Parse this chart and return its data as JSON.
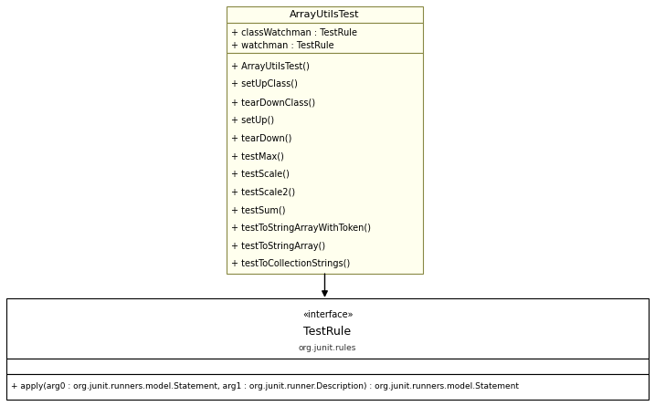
{
  "bg_color": "#ffffff",
  "class_bg": "#ffffee",
  "class_border": "#888844",
  "interface_bg": "#ffffff",
  "interface_border": "#000000",
  "class_name": "ArrayUtilsTest",
  "class_attributes": [
    "+ classWatchman : TestRule",
    "+ watchman : TestRule"
  ],
  "class_methods": [
    "+ ArrayUtilsTest()",
    "+ setUpClass()",
    "+ tearDownClass()",
    "+ setUp()",
    "+ tearDown()",
    "+ testMax()",
    "+ testScale()",
    "+ testScale2()",
    "+ testSum()",
    "+ testToStringArrayWithToken()",
    "+ testToStringArray()",
    "+ testToCollectionStrings()"
  ],
  "interface_stereotype": "«interface»",
  "interface_name": "TestRule",
  "interface_package": "org.junit.rules",
  "interface_method": "+ apply(arg0 : org.junit.runners.model.Statement, arg1 : org.junit.runner.Description) : org.junit.runners.model.Statement",
  "fig_w": 7.17,
  "fig_h": 4.45,
  "dpi": 100
}
